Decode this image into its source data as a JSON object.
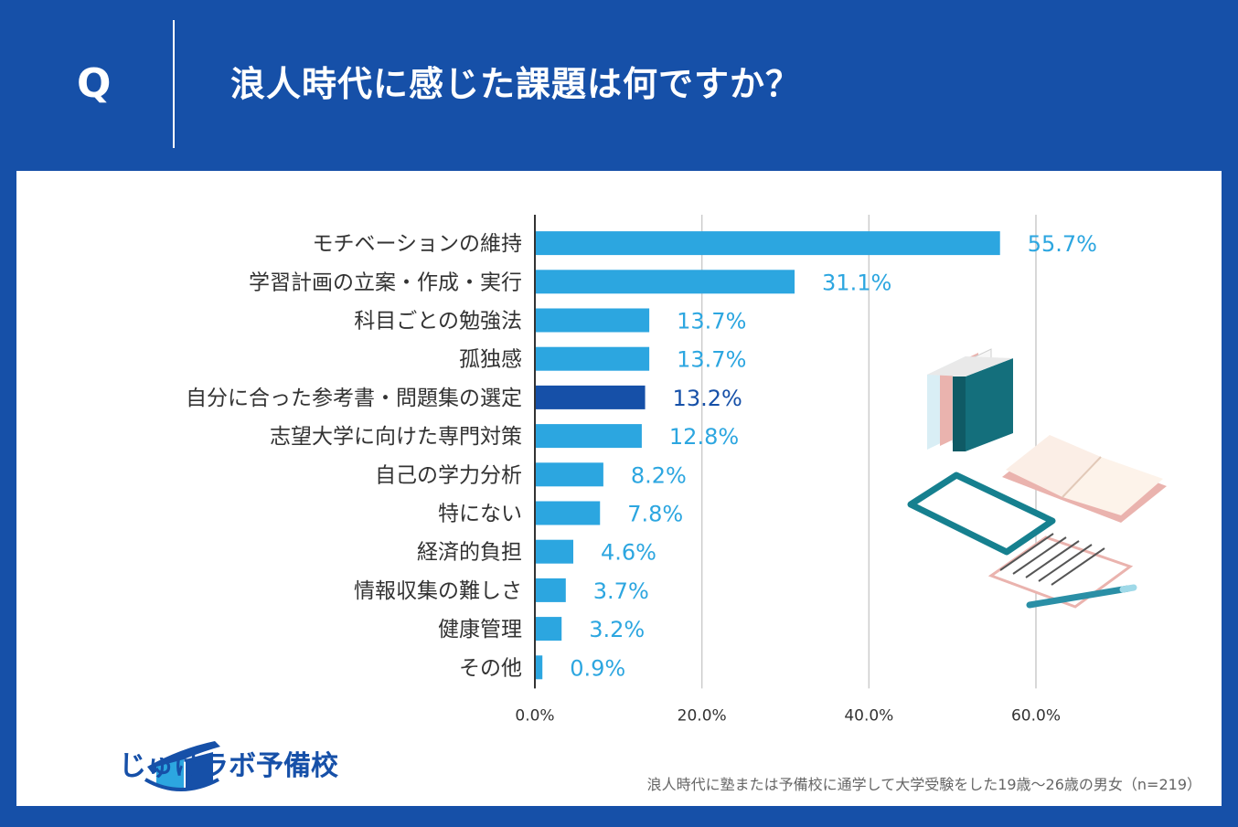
{
  "header": {
    "q_mark": "Q",
    "title": "浪人時代に感じた課題は何ですか？"
  },
  "colors": {
    "background": "#1650a8",
    "bar": "#2ca6e0",
    "bar_highlight": "#1650a8",
    "grid": "#cccccc"
  },
  "chart_data": {
    "type": "bar",
    "orientation": "horizontal",
    "categories": [
      "モチベーションの維持",
      "学習計画の立案・作成・実行",
      "科目ごとの勉強法",
      "孤独感",
      "自分に合った参考書・問題集の選定",
      "志望大学に向けた専門対策",
      "自己の学力分析",
      "特にない",
      "経済的負担",
      "情報収集の難しさ",
      "健康管理",
      "その他"
    ],
    "values": [
      55.7,
      31.1,
      13.7,
      13.7,
      13.2,
      12.8,
      8.2,
      7.8,
      4.6,
      3.7,
      3.2,
      0.9
    ],
    "value_labels": [
      "55.7%",
      "31.1%",
      "13.7%",
      "13.7%",
      "13.2%",
      "12.8%",
      "8.2%",
      "7.8%",
      "4.6%",
      "3.7%",
      "3.2%",
      "0.9%"
    ],
    "highlight_index": 4,
    "xlim": [
      0,
      60
    ],
    "x_ticks": [
      0,
      20,
      40,
      60
    ],
    "x_tick_labels": [
      "0.0%",
      "20.0%",
      "40.0%",
      "60.0%"
    ],
    "grid": true
  },
  "logo": {
    "text": "じゅけラボ予備校",
    "icon": "open-book-logo-icon"
  },
  "footnote": "浪人時代に塾または予備校に通学して大学受験をした19歳～26歳の男女（n=219）",
  "illustration": {
    "icon": "study-items-illustration"
  }
}
